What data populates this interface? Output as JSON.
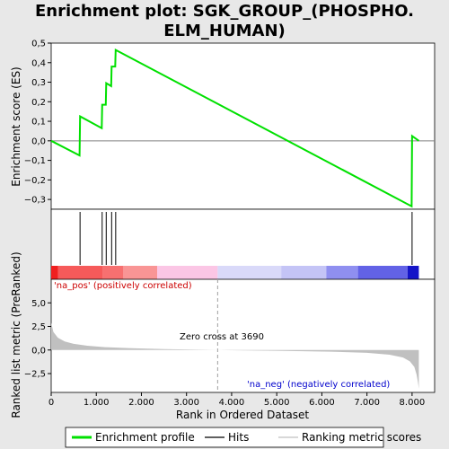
{
  "chart_data": {
    "type": "line",
    "title_line1": "Enrichment plot: SGK_GROUP_(PHOSPHO.",
    "title_line2": "ELM_HUMAN)",
    "xlabel": "Rank in Ordered Dataset",
    "es_ylabel": "Enrichment score (ES)",
    "metric_ylabel": "Ranked list metric (PreRanked)",
    "xlim": [
      0,
      8500
    ],
    "es_ylim": [
      -0.35,
      0.5
    ],
    "metric_ylim": [
      -4.5,
      7.5
    ],
    "x_ticks": [
      0,
      1000,
      2000,
      3000,
      4000,
      5000,
      6000,
      7000,
      8000
    ],
    "x_tick_labels": [
      "0",
      "1.000",
      "2.000",
      "3.000",
      "4.000",
      "5.000",
      "6.000",
      "7.000",
      "8.000"
    ],
    "es_ticks": [
      0.5,
      0.4,
      0.3,
      0.2,
      0.1,
      0.0,
      -0.1,
      -0.2,
      -0.3
    ],
    "es_tick_labels": [
      "0,5",
      "0,4",
      "0,3",
      "0,2",
      "0,1",
      "0,0",
      "−0,1",
      "−0,2",
      "−0,3"
    ],
    "metric_ticks": [
      5.0,
      2.5,
      0.0,
      -2.5
    ],
    "metric_tick_labels": [
      "5,0",
      "2,5",
      "0,0",
      "−2,5"
    ],
    "series": [
      {
        "name": "Enrichment profile",
        "color": "#00e000",
        "x": [
          0,
          630,
          640,
          1120,
          1130,
          1210,
          1220,
          1330,
          1340,
          1420,
          1430,
          7990,
          8000,
          8150
        ],
        "y": [
          0.0,
          -0.075,
          0.125,
          0.065,
          0.185,
          0.185,
          0.295,
          0.28,
          0.38,
          0.38,
          0.465,
          -0.335,
          0.025,
          0.0
        ]
      }
    ],
    "hits": [
      640,
      1130,
      1220,
      1340,
      1430,
      8000
    ],
    "heatmap_segments": [
      {
        "x0": 0,
        "x1": 150,
        "color": "#f01f1f"
      },
      {
        "x0": 150,
        "x1": 1150,
        "color": "#f65a5a"
      },
      {
        "x0": 1150,
        "x1": 1600,
        "color": "#f77070"
      },
      {
        "x0": 1600,
        "x1": 2350,
        "color": "#f99595"
      },
      {
        "x0": 2350,
        "x1": 3690,
        "color": "#fbc6e5"
      },
      {
        "x0": 3690,
        "x1": 5100,
        "color": "#d9d9f9"
      },
      {
        "x0": 5100,
        "x1": 6100,
        "color": "#c4c4f6"
      },
      {
        "x0": 6100,
        "x1": 6800,
        "color": "#8f8ff0"
      },
      {
        "x0": 6800,
        "x1": 7900,
        "color": "#6262e6"
      },
      {
        "x0": 7900,
        "x1": 8150,
        "color": "#1414c8"
      }
    ],
    "metric_profile": {
      "x": [
        0,
        50,
        150,
        300,
        500,
        800,
        1200,
        1700,
        2500,
        3690,
        5000,
        6200,
        7000,
        7500,
        7800,
        7950,
        8050,
        8100,
        8130,
        8150
      ],
      "y": [
        2.9,
        1.9,
        1.3,
        0.9,
        0.65,
        0.45,
        0.3,
        0.2,
        0.1,
        0.0,
        -0.08,
        -0.18,
        -0.3,
        -0.5,
        -0.8,
        -1.2,
        -1.8,
        -2.6,
        -3.4,
        -4.1
      ]
    },
    "zero_cross": 3690,
    "zero_cross_label": "Zero cross at 3690",
    "pos_label": "'na_pos' (positively correlated)",
    "neg_label": "'na_neg' (negatively correlated)",
    "legend": [
      {
        "label": "Enrichment profile",
        "color": "#00e000"
      },
      {
        "label": "Hits",
        "color": "#000000"
      },
      {
        "label": "Ranking metric scores",
        "color": "#c0c0c0"
      }
    ]
  }
}
